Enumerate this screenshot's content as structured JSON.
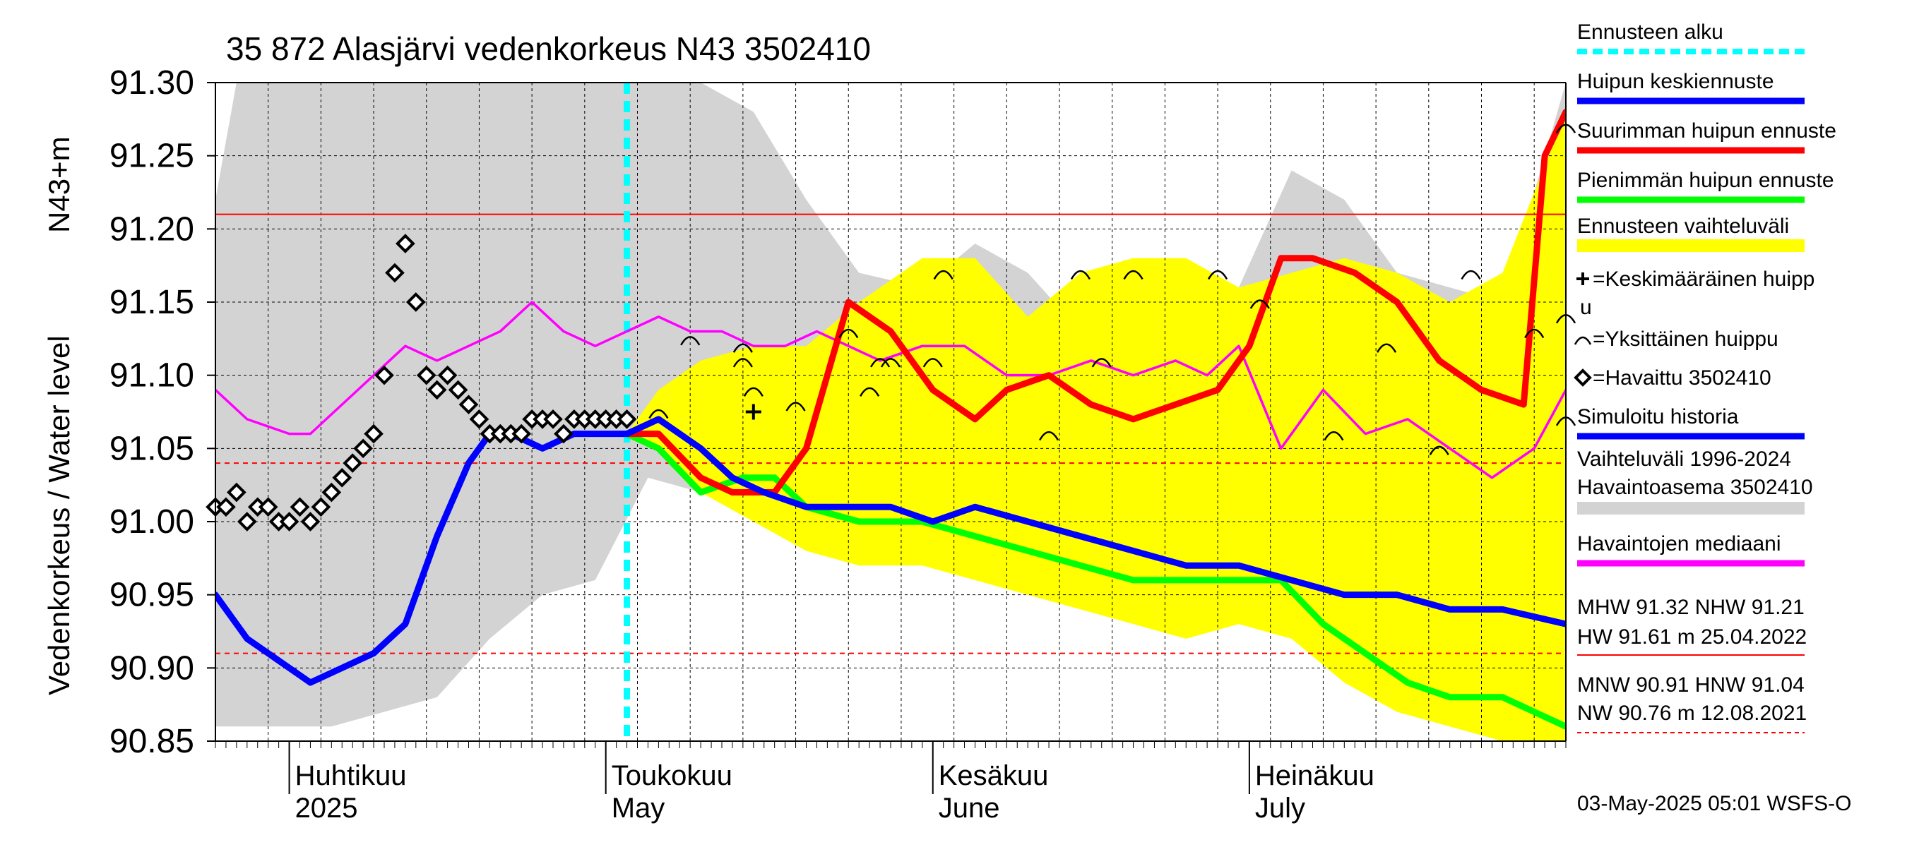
{
  "chart_data": {
    "type": "line",
    "title": "35 872 Alasjärvi vedenkorkeus N43 3502410",
    "ylabel_top": "N43+m",
    "ylabel": "Vedenkorkeus / Water level",
    "ylim": [
      90.85,
      91.3
    ],
    "yticks": [
      "91.30",
      "91.25",
      "91.20",
      "91.15",
      "91.10",
      "91.05",
      "91.00",
      "90.95",
      "90.90",
      "90.85"
    ],
    "x_range": [
      "2025-03-25",
      "2025-07-31"
    ],
    "grid": true,
    "legend_position": "right",
    "month_labels": [
      {
        "fi": "Huhtikuu",
        "en": "2025",
        "date": "2025-04-01"
      },
      {
        "fi": "Toukokuu",
        "en": "May",
        "date": "2025-05-01"
      },
      {
        "fi": "Kesäkuu",
        "en": "June",
        "date": "2025-06-01"
      },
      {
        "fi": "Heinäkuu",
        "en": "July",
        "date": "2025-07-01"
      }
    ],
    "forecast_start": "2025-05-03",
    "reference_lines": [
      {
        "name": "NHW",
        "value": 91.21,
        "color": "#ff0000",
        "style": "solid"
      },
      {
        "name": "HNW",
        "value": 91.04,
        "color": "#ff0000",
        "style": "dashed"
      },
      {
        "name": "MNW",
        "value": 90.91,
        "color": "#ff0000",
        "style": "dashed"
      }
    ],
    "series": [
      {
        "name": "Vaihteluväli 1996-2024 Havaintoasema 3502410",
        "kind": "band",
        "color": "#d3d3d3",
        "x": [
          "2025-03-25",
          "2025-03-27",
          "2025-04-01",
          "2025-04-05",
          "2025-04-10",
          "2025-04-15",
          "2025-04-20",
          "2025-04-25",
          "2025-04-30",
          "2025-05-05",
          "2025-05-10",
          "2025-05-15",
          "2025-05-20",
          "2025-05-25",
          "2025-05-31",
          "2025-06-05",
          "2025-06-10",
          "2025-06-15",
          "2025-06-20",
          "2025-06-25",
          "2025-06-30",
          "2025-07-05",
          "2025-07-10",
          "2025-07-15",
          "2025-07-20",
          "2025-07-25",
          "2025-07-31"
        ],
        "upper": [
          91.22,
          91.3,
          91.3,
          91.3,
          91.3,
          91.3,
          91.3,
          91.3,
          91.3,
          91.3,
          91.3,
          91.28,
          91.22,
          91.17,
          91.16,
          91.19,
          91.17,
          91.13,
          91.17,
          91.17,
          91.16,
          91.24,
          91.22,
          91.17,
          91.16,
          91.15,
          91.3
        ],
        "lower": [
          90.86,
          90.86,
          90.86,
          90.86,
          90.87,
          90.88,
          90.92,
          90.95,
          90.96,
          91.03,
          91.02,
          91.03,
          91.01,
          91.0,
          90.99,
          91.0,
          90.99,
          90.98,
          90.98,
          90.96,
          90.97,
          90.93,
          90.9,
          90.87,
          90.86,
          90.85,
          90.85
        ]
      },
      {
        "name": "Ennusteen vaihteluväli",
        "kind": "band",
        "color": "#ffff00",
        "x": [
          "2025-05-03",
          "2025-05-06",
          "2025-05-10",
          "2025-05-15",
          "2025-05-20",
          "2025-05-25",
          "2025-05-31",
          "2025-06-05",
          "2025-06-10",
          "2025-06-15",
          "2025-06-20",
          "2025-06-25",
          "2025-06-30",
          "2025-07-05",
          "2025-07-10",
          "2025-07-15",
          "2025-07-20",
          "2025-07-25",
          "2025-07-31"
        ],
        "upper": [
          91.06,
          91.09,
          91.11,
          91.12,
          91.12,
          91.15,
          91.18,
          91.18,
          91.14,
          91.17,
          91.18,
          91.18,
          91.16,
          91.17,
          91.18,
          91.17,
          91.15,
          91.17,
          91.28
        ],
        "lower": [
          91.06,
          91.05,
          91.02,
          91.0,
          90.98,
          90.97,
          90.97,
          90.96,
          90.95,
          90.94,
          90.93,
          90.92,
          90.93,
          90.92,
          90.89,
          90.87,
          90.86,
          90.85,
          90.85
        ]
      },
      {
        "name": "Havaintojen mediaani",
        "kind": "line",
        "color": "#ff00ff",
        "x": [
          "2025-03-25",
          "2025-03-28",
          "2025-04-01",
          "2025-04-03",
          "2025-04-06",
          "2025-04-09",
          "2025-04-12",
          "2025-04-15",
          "2025-04-18",
          "2025-04-21",
          "2025-04-24",
          "2025-04-27",
          "2025-04-30",
          "2025-05-03",
          "2025-05-06",
          "2025-05-09",
          "2025-05-12",
          "2025-05-15",
          "2025-05-18",
          "2025-05-21",
          "2025-05-24",
          "2025-05-27",
          "2025-05-31",
          "2025-06-04",
          "2025-06-08",
          "2025-06-12",
          "2025-06-16",
          "2025-06-20",
          "2025-06-24",
          "2025-06-27",
          "2025-06-30",
          "2025-07-04",
          "2025-07-08",
          "2025-07-12",
          "2025-07-16",
          "2025-07-20",
          "2025-07-24",
          "2025-07-28",
          "2025-07-31"
        ],
        "values": [
          91.09,
          91.07,
          91.06,
          91.06,
          91.08,
          91.1,
          91.12,
          91.11,
          91.12,
          91.13,
          91.15,
          91.13,
          91.12,
          91.13,
          91.14,
          91.13,
          91.13,
          91.12,
          91.12,
          91.13,
          91.12,
          91.11,
          91.12,
          91.12,
          91.1,
          91.1,
          91.11,
          91.1,
          91.11,
          91.1,
          91.12,
          91.05,
          91.09,
          91.06,
          91.07,
          91.05,
          91.03,
          91.05,
          91.09
        ]
      },
      {
        "name": "Simuloitu historia",
        "kind": "line",
        "color": "#0000ff",
        "x": [
          "2025-03-25",
          "2025-03-28",
          "2025-04-01",
          "2025-04-03",
          "2025-04-06",
          "2025-04-09",
          "2025-04-12",
          "2025-04-15",
          "2025-04-18",
          "2025-04-20",
          "2025-04-22",
          "2025-04-25",
          "2025-04-28",
          "2025-05-01",
          "2025-05-03"
        ],
        "values": [
          90.95,
          90.92,
          90.9,
          90.89,
          90.9,
          90.91,
          90.93,
          90.99,
          91.04,
          91.06,
          91.06,
          91.05,
          91.06,
          91.06,
          91.06
        ]
      },
      {
        "name": "Huipun keskiennuste",
        "kind": "line",
        "color": "#0000ff",
        "x": [
          "2025-05-03",
          "2025-05-06",
          "2025-05-10",
          "2025-05-13",
          "2025-05-16",
          "2025-05-20",
          "2025-05-24",
          "2025-05-28",
          "2025-06-01",
          "2025-06-05",
          "2025-06-10",
          "2025-06-15",
          "2025-06-20",
          "2025-06-25",
          "2025-06-30",
          "2025-07-05",
          "2025-07-10",
          "2025-07-15",
          "2025-07-20",
          "2025-07-25",
          "2025-07-31"
        ],
        "values": [
          91.06,
          91.07,
          91.05,
          91.03,
          91.02,
          91.01,
          91.01,
          91.01,
          91.0,
          91.01,
          91.0,
          90.99,
          90.98,
          90.97,
          90.97,
          90.96,
          90.95,
          90.95,
          90.94,
          90.94,
          90.93
        ]
      },
      {
        "name": "Suurimman huipun ennuste",
        "kind": "line",
        "color": "#ff0000",
        "x": [
          "2025-05-03",
          "2025-05-06",
          "2025-05-10",
          "2025-05-13",
          "2025-05-17",
          "2025-05-20",
          "2025-05-24",
          "2025-05-28",
          "2025-06-01",
          "2025-06-05",
          "2025-06-08",
          "2025-06-12",
          "2025-06-16",
          "2025-06-20",
          "2025-06-24",
          "2025-06-28",
          "2025-07-01",
          "2025-07-04",
          "2025-07-07",
          "2025-07-11",
          "2025-07-15",
          "2025-07-19",
          "2025-07-23",
          "2025-07-27",
          "2025-07-29",
          "2025-07-31"
        ],
        "values": [
          91.06,
          91.06,
          91.03,
          91.02,
          91.02,
          91.05,
          91.15,
          91.13,
          91.09,
          91.07,
          91.09,
          91.1,
          91.08,
          91.07,
          91.08,
          91.09,
          91.12,
          91.18,
          91.18,
          91.17,
          91.15,
          91.11,
          91.09,
          91.08,
          91.25,
          91.28
        ]
      },
      {
        "name": "Pienimmän huipun ennuste",
        "kind": "line",
        "color": "#00ff00",
        "x": [
          "2025-05-03",
          "2025-05-06",
          "2025-05-10",
          "2025-05-14",
          "2025-05-17",
          "2025-05-20",
          "2025-05-25",
          "2025-05-31",
          "2025-06-05",
          "2025-06-10",
          "2025-06-15",
          "2025-06-20",
          "2025-06-25",
          "2025-06-30",
          "2025-07-04",
          "2025-07-08",
          "2025-07-12",
          "2025-07-16",
          "2025-07-20",
          "2025-07-25",
          "2025-07-31"
        ],
        "values": [
          91.06,
          91.05,
          91.02,
          91.03,
          91.03,
          91.01,
          91.0,
          91.0,
          90.99,
          90.98,
          90.97,
          90.96,
          90.96,
          90.96,
          90.96,
          90.93,
          90.91,
          90.89,
          90.88,
          90.88,
          90.86
        ]
      },
      {
        "name": "Havaittu 3502410",
        "kind": "points",
        "marker": "diamond",
        "color": "#000000",
        "x": [
          "2025-03-25",
          "2025-03-26",
          "2025-03-27",
          "2025-03-28",
          "2025-03-29",
          "2025-03-30",
          "2025-03-31",
          "2025-04-01",
          "2025-04-02",
          "2025-04-03",
          "2025-04-04",
          "2025-04-05",
          "2025-04-06",
          "2025-04-07",
          "2025-04-08",
          "2025-04-09",
          "2025-04-10",
          "2025-04-11",
          "2025-04-12",
          "2025-04-13",
          "2025-04-14",
          "2025-04-15",
          "2025-04-16",
          "2025-04-17",
          "2025-04-18",
          "2025-04-19",
          "2025-04-20",
          "2025-04-21",
          "2025-04-22",
          "2025-04-23",
          "2025-04-24",
          "2025-04-25",
          "2025-04-26",
          "2025-04-27",
          "2025-04-28",
          "2025-04-29",
          "2025-04-30",
          "2025-05-01",
          "2025-05-02",
          "2025-05-03"
        ],
        "values": [
          91.01,
          91.01,
          91.02,
          91.0,
          91.01,
          91.01,
          91.0,
          91.0,
          91.01,
          91.0,
          91.01,
          91.02,
          91.03,
          91.04,
          91.05,
          91.06,
          91.1,
          91.17,
          91.19,
          91.15,
          91.1,
          91.09,
          91.1,
          91.09,
          91.08,
          91.07,
          91.06,
          91.06,
          91.06,
          91.06,
          91.07,
          91.07,
          91.07,
          91.06,
          91.07,
          91.07,
          91.07,
          91.07,
          91.07,
          91.07
        ]
      },
      {
        "name": "Keskimääräinen huippu",
        "kind": "points",
        "marker": "plus",
        "color": "#000000",
        "x": [
          "2025-05-15"
        ],
        "values": [
          91.075
        ]
      },
      {
        "name": "Yksittäinen huippu",
        "kind": "points",
        "marker": "arc",
        "color": "#000000",
        "x": [
          "2025-05-06",
          "2025-05-09",
          "2025-05-14",
          "2025-05-14",
          "2025-05-15",
          "2025-05-19",
          "2025-05-24",
          "2025-05-26",
          "2025-05-27",
          "2025-05-28",
          "2025-06-01",
          "2025-06-02",
          "2025-06-12",
          "2025-06-15",
          "2025-06-17",
          "2025-06-20",
          "2025-06-28",
          "2025-07-02",
          "2025-07-09",
          "2025-07-14",
          "2025-07-19",
          "2025-07-22",
          "2025-07-28",
          "2025-07-31",
          "2025-07-31",
          "2025-07-31"
        ],
        "values": [
          91.075,
          91.125,
          91.12,
          91.11,
          91.09,
          91.08,
          91.13,
          91.09,
          91.11,
          91.11,
          91.11,
          91.17,
          91.06,
          91.17,
          91.11,
          91.17,
          91.17,
          91.15,
          91.06,
          91.12,
          91.05,
          91.17,
          91.13,
          91.14,
          91.07,
          91.27
        ]
      }
    ],
    "legend": [
      {
        "label": "Ennusteen alku",
        "swatch": "dashed-line",
        "color": "#00ffff"
      },
      {
        "label": "Huipun keskiennuste",
        "swatch": "line",
        "color": "#0000ff"
      },
      {
        "label": "Suurimman huipun ennuste",
        "swatch": "line",
        "color": "#ff0000"
      },
      {
        "label": "Pienimmän huipun ennuste",
        "swatch": "line",
        "color": "#00ff00"
      },
      {
        "label": "Ennusteen vaihteluväli",
        "swatch": "bar",
        "color": "#ffff00"
      },
      {
        "label": "=Keskimääräinen huipp",
        "label2": "u",
        "swatch": "plus"
      },
      {
        "label": "=Yksittäinen huippu",
        "swatch": "arc"
      },
      {
        "label": "=Havaittu 3502410",
        "swatch": "diamond"
      },
      {
        "label": "Simuloitu historia",
        "swatch": "line",
        "color": "#0000ff"
      },
      {
        "label": "Vaihteluväli 1996-2024",
        "label2": " Havaintoasema 3502410",
        "swatch": "bar",
        "color": "#d3d3d3"
      },
      {
        "label": "Havaintojen mediaani",
        "swatch": "line",
        "color": "#ff00ff"
      }
    ],
    "stats": {
      "line1": "MHW  91.32 NHW  91.21",
      "line2": "HW  91.61 m 25.04.2022",
      "line3": "MNW  90.91 HNW  91.04",
      "line4": "NW  90.76 m 12.08.2021"
    },
    "footer": "03-May-2025 05:01 WSFS-O"
  }
}
